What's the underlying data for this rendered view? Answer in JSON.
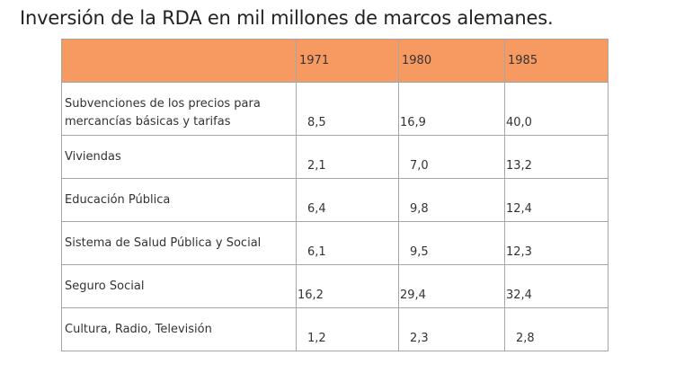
{
  "title": "Inversión de la RDA en mil millones de marcos alemanes.",
  "table": {
    "header_fill": "#f79a62",
    "columns": [
      "",
      "1971",
      "1980",
      "1985"
    ],
    "rows": [
      {
        "label": "Subvenciones de los precios para mercancías básicas y tarifas",
        "values": [
          "8,5",
          "16,9",
          "40,0"
        ]
      },
      {
        "label": "Viviendas",
        "values": [
          "2,1",
          "7,0",
          "13,2"
        ]
      },
      {
        "label": "Educación Pública",
        "values": [
          "6,4",
          "9,8",
          "12,4"
        ]
      },
      {
        "label": "Sistema de Salud Pública y Social",
        "values": [
          "6,1",
          "9,5",
          "12,3"
        ]
      },
      {
        "label": "Seguro Social",
        "values": [
          "16,2",
          "29,4",
          "32,4"
        ]
      },
      {
        "label": "Cultura, Radio, Televisión",
        "values": [
          "1,2",
          "2,3",
          "2,8"
        ]
      }
    ]
  }
}
